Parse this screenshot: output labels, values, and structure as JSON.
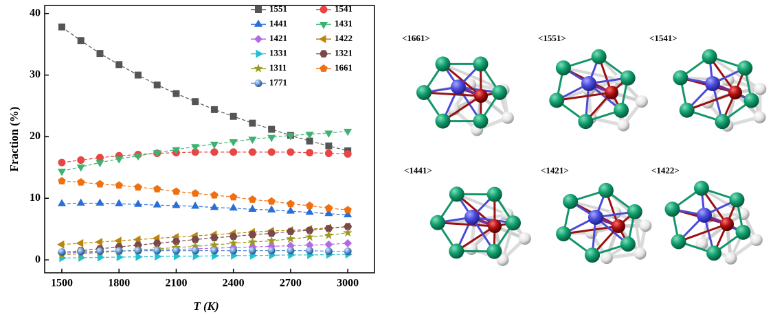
{
  "chart_data": {
    "type": "line",
    "x_label": "T (K)",
    "y_label": "Fraction (%)",
    "x": [
      1500,
      1600,
      1700,
      1800,
      1900,
      2000,
      2100,
      2200,
      2300,
      2400,
      2500,
      2600,
      2700,
      2800,
      2900,
      3000
    ],
    "xlim": [
      1410,
      3140
    ],
    "xticks": [
      1500,
      1800,
      2100,
      2400,
      2700,
      3000
    ],
    "ylim": [
      -2.1,
      41.3
    ],
    "yticks": [
      0,
      10,
      20,
      30,
      40
    ],
    "legend": "top-right",
    "series": [
      {
        "name": "1551",
        "color": "#555555",
        "marker": "square",
        "values": [
          37.8,
          35.6,
          33.5,
          31.7,
          30.0,
          28.4,
          27.0,
          25.7,
          24.4,
          23.3,
          22.2,
          21.2,
          20.2,
          19.3,
          18.5,
          17.7
        ]
      },
      {
        "name": "1541",
        "color": "#e84545",
        "marker": "circle",
        "values": [
          15.8,
          16.2,
          16.6,
          16.9,
          17.1,
          17.3,
          17.4,
          17.5,
          17.5,
          17.5,
          17.5,
          17.5,
          17.5,
          17.4,
          17.3,
          17.2
        ]
      },
      {
        "name": "1441",
        "color": "#2a6fd6",
        "marker": "triangle-up",
        "values": [
          9.1,
          9.2,
          9.2,
          9.1,
          9.0,
          8.9,
          8.8,
          8.7,
          8.5,
          8.4,
          8.2,
          8.1,
          7.9,
          7.7,
          7.5,
          7.3
        ]
      },
      {
        "name": "1431",
        "color": "#3cb371",
        "marker": "triangle-down",
        "values": [
          14.4,
          15.1,
          15.8,
          16.4,
          16.9,
          17.4,
          17.9,
          18.4,
          18.8,
          19.2,
          19.6,
          19.9,
          20.2,
          20.4,
          20.6,
          20.9
        ]
      },
      {
        "name": "1421",
        "color": "#b36ae2",
        "marker": "diamond",
        "values": [
          1.1,
          1.2,
          1.3,
          1.4,
          1.5,
          1.6,
          1.7,
          1.8,
          1.9,
          2.0,
          2.1,
          2.2,
          2.3,
          2.4,
          2.5,
          2.7
        ]
      },
      {
        "name": "1422",
        "color": "#b8860b",
        "marker": "triangle-left",
        "values": [
          2.5,
          2.7,
          2.9,
          3.1,
          3.3,
          3.5,
          3.7,
          3.9,
          4.1,
          4.3,
          4.5,
          4.7,
          4.8,
          5.0,
          5.2,
          5.4
        ]
      },
      {
        "name": "1331",
        "color": "#20c0d0",
        "marker": "triangle-right",
        "values": [
          0.3,
          0.35,
          0.4,
          0.45,
          0.5,
          0.55,
          0.6,
          0.6,
          0.65,
          0.7,
          0.7,
          0.75,
          0.8,
          0.8,
          0.85,
          0.9
        ]
      },
      {
        "name": "1321",
        "color": "#7a4a4a",
        "marker": "hexagon",
        "values": [
          1.2,
          1.5,
          1.8,
          2.1,
          2.4,
          2.7,
          3.0,
          3.3,
          3.6,
          3.8,
          4.1,
          4.3,
          4.6,
          4.8,
          5.1,
          5.4
        ]
      },
      {
        "name": "1311",
        "color": "#9a9a20",
        "marker": "star",
        "values": [
          0.8,
          1.0,
          1.2,
          1.4,
          1.6,
          1.8,
          2.0,
          2.2,
          2.4,
          2.7,
          2.9,
          3.1,
          3.4,
          3.7,
          4.0,
          4.4
        ]
      },
      {
        "name": "1661",
        "color": "#f07010",
        "marker": "pentagon",
        "values": [
          12.8,
          12.6,
          12.3,
          12.1,
          11.8,
          11.5,
          11.1,
          10.8,
          10.5,
          10.2,
          9.8,
          9.5,
          9.1,
          8.8,
          8.4,
          8.1
        ]
      },
      {
        "name": "1771",
        "color": "#5b8fd0",
        "marker": "sphere",
        "values": [
          1.3,
          1.35,
          1.4,
          1.45,
          1.5,
          1.5,
          1.5,
          1.5,
          1.5,
          1.5,
          1.5,
          1.5,
          1.5,
          1.5,
          1.4,
          1.4
        ]
      }
    ]
  },
  "structures": [
    "<1661>",
    "<1551>",
    "<1541>",
    "<1441>",
    "<1421>",
    "<1422>"
  ]
}
